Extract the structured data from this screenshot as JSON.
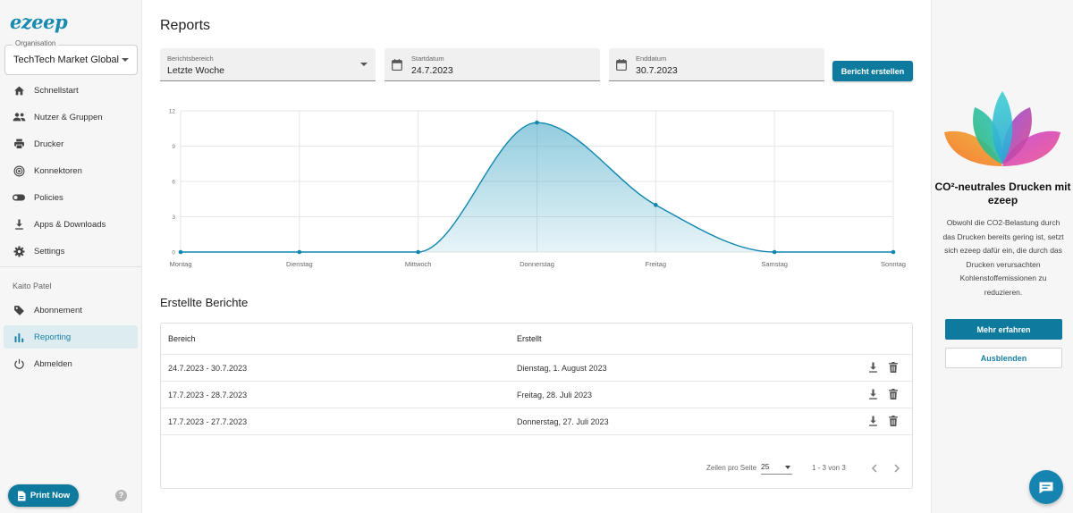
{
  "brand": {
    "logo_text": "ezeep",
    "accent": "#0d7a9e"
  },
  "sidebar": {
    "org_label": "Organisation",
    "org_value": "TechTech Market Global",
    "items": [
      {
        "label": "Schnellstart",
        "icon": "home-icon"
      },
      {
        "label": "Nutzer & Gruppen",
        "icon": "users-icon"
      },
      {
        "label": "Drucker",
        "icon": "printer-icon"
      },
      {
        "label": "Konnektoren",
        "icon": "connector-icon"
      },
      {
        "label": "Policies",
        "icon": "toggle-icon"
      },
      {
        "label": "Apps & Downloads",
        "icon": "download-icon"
      },
      {
        "label": "Settings",
        "icon": "gear-icon"
      }
    ],
    "user_name": "Kaito Patel",
    "user_items": [
      {
        "label": "Abonnement",
        "icon": "tag-icon"
      },
      {
        "label": "Reporting",
        "icon": "bar-chart-icon",
        "active": true
      },
      {
        "label": "Abmelden",
        "icon": "power-icon"
      }
    ],
    "print_now": "Print Now",
    "help": "?"
  },
  "main": {
    "title": "Reports",
    "range": {
      "label": "Berichtsbereich",
      "value": "Letzte Woche"
    },
    "start": {
      "label": "Startdatum",
      "value": "24.7.2023"
    },
    "end": {
      "label": "Enddatum",
      "value": "30.7.2023"
    },
    "create_button": "Bericht erstellen",
    "section_title": "Erstellte Berichte",
    "table": {
      "headers": [
        "Bereich",
        "Erstellt"
      ],
      "rows": [
        {
          "range": "24.7.2023 - 30.7.2023",
          "created": "Dienstag, 1. August 2023"
        },
        {
          "range": "17.7.2023 - 28.7.2023",
          "created": "Freitag, 28. Juli 2023"
        },
        {
          "range": "17.7.2023 - 27.7.2023",
          "created": "Donnerstag, 27. Juli 2023"
        }
      ],
      "rows_per_page_label": "Zeilen pro Seite",
      "rows_per_page": "25",
      "page_info": "1 - 3 von 3"
    }
  },
  "chart_data": {
    "type": "area",
    "categories": [
      "Montag",
      "Dienstag",
      "Mittwoch",
      "Donnerstag",
      "Freitag",
      "Samstag",
      "Sonntag"
    ],
    "values": [
      0,
      0,
      0,
      11,
      4,
      0,
      0
    ],
    "yticks": [
      0,
      3,
      6,
      9,
      12
    ],
    "ylim": [
      0,
      12
    ],
    "grid": true,
    "color": "#0f86ad"
  },
  "promo": {
    "title": "CO²-neutrales Drucken mit ezeep",
    "body": "Obwohl die CO2-Belastung durch das Drucken bereits gering ist, setzt sich ezeep dafür ein, die durch das Drucken verursachten Kohlenstoffemissionen zu reduzieren.",
    "learn_more": "Mehr erfahren",
    "hide": "Ausblenden"
  }
}
